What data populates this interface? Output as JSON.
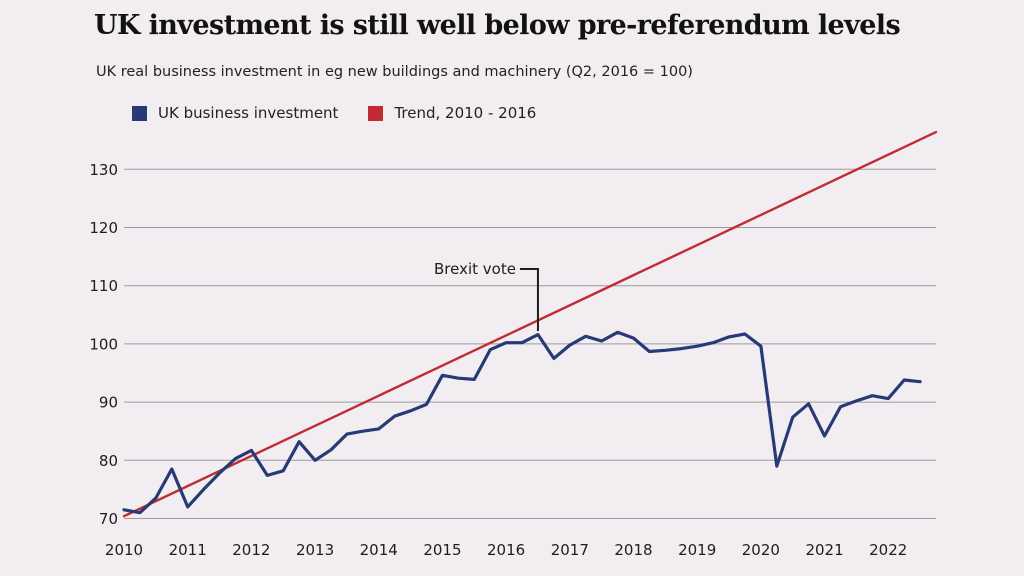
{
  "title": "UK investment is still well below pre-referendum levels",
  "subtitle": "UK real business investment in eg new buildings and machinery (Q2, 2016 = 100)",
  "chart_data": {
    "type": "line",
    "x_axis_ticks": [
      "2010",
      "2011",
      "2012",
      "2013",
      "2014",
      "2015",
      "2016",
      "2017",
      "2018",
      "2019",
      "2020",
      "2021",
      "2022"
    ],
    "y_axis_ticks": [
      70,
      80,
      90,
      100,
      110,
      120,
      130
    ],
    "xlim": [
      2010.0,
      2022.75
    ],
    "ylim": [
      69,
      137
    ],
    "grid": true,
    "legend_position": "top-left",
    "annotation": {
      "text": "Brexit vote",
      "x": 2016.5
    },
    "series": [
      {
        "name": "UK business investment",
        "color": "#283a76",
        "x": [
          2010.0,
          2010.25,
          2010.5,
          2010.75,
          2011.0,
          2011.25,
          2011.5,
          2011.75,
          2012.0,
          2012.25,
          2012.5,
          2012.75,
          2013.0,
          2013.25,
          2013.5,
          2013.75,
          2014.0,
          2014.25,
          2014.5,
          2014.75,
          2015.0,
          2015.25,
          2015.5,
          2015.75,
          2016.0,
          2016.25,
          2016.5,
          2016.75,
          2017.0,
          2017.25,
          2017.5,
          2017.75,
          2018.0,
          2018.25,
          2018.5,
          2018.75,
          2019.0,
          2019.25,
          2019.5,
          2019.75,
          2020.0,
          2020.25,
          2020.5,
          2020.75,
          2021.0,
          2021.25,
          2021.5,
          2021.75,
          2022.0,
          2022.25,
          2022.5
        ],
        "values": [
          71.5,
          71.0,
          73.5,
          78.5,
          72.0,
          75.0,
          77.8,
          80.3,
          81.7,
          77.4,
          78.2,
          83.2,
          80.0,
          81.8,
          84.5,
          85.0,
          85.4,
          87.6,
          88.5,
          89.6,
          94.6,
          94.1,
          93.9,
          99.0,
          100.2,
          100.2,
          101.6,
          97.5,
          99.8,
          101.3,
          100.5,
          102.0,
          101.0,
          98.7,
          98.9,
          99.2,
          99.6,
          100.2,
          101.2,
          101.7,
          99.6,
          79.0,
          87.4,
          89.7,
          84.2,
          89.2,
          90.2,
          91.1,
          90.6,
          93.8,
          93.5
        ]
      },
      {
        "name": "Trend, 2010 - 2016",
        "color": "#c12b33",
        "x": [
          2010.0,
          2022.75
        ],
        "values": [
          70.4,
          136.4
        ]
      }
    ]
  }
}
